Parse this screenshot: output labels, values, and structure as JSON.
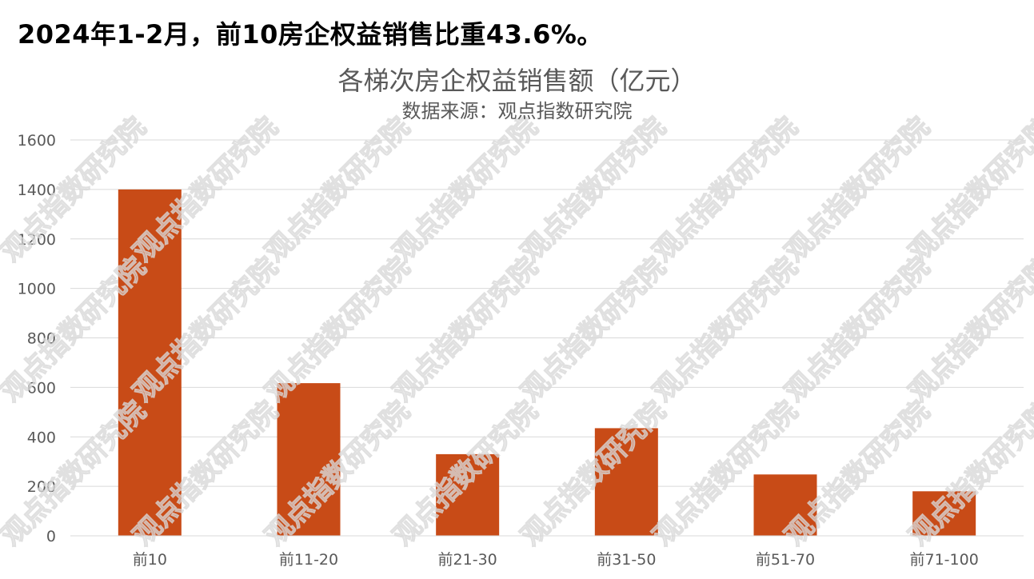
{
  "headline": "2024年1-2月，前10房企权益销售比重43.6%。",
  "watermark_text": "观点指数研究院",
  "chart_data": {
    "type": "bar",
    "title": "各梯次房企权益销售额（亿元）",
    "subtitle": "数据来源：观点指数研究院",
    "categories": [
      "前10",
      "前11-20",
      "前21-30",
      "前31-50",
      "前51-70",
      "前71-100"
    ],
    "values": [
      1400,
      617,
      330,
      435,
      248,
      180
    ],
    "ylim": [
      0,
      1600
    ],
    "yticks": [
      0,
      200,
      400,
      600,
      800,
      1000,
      1200,
      1400,
      1600
    ],
    "grid": true,
    "legend": "none",
    "bar_color": "#c84b17",
    "grid_color": "#d9d9d9"
  }
}
